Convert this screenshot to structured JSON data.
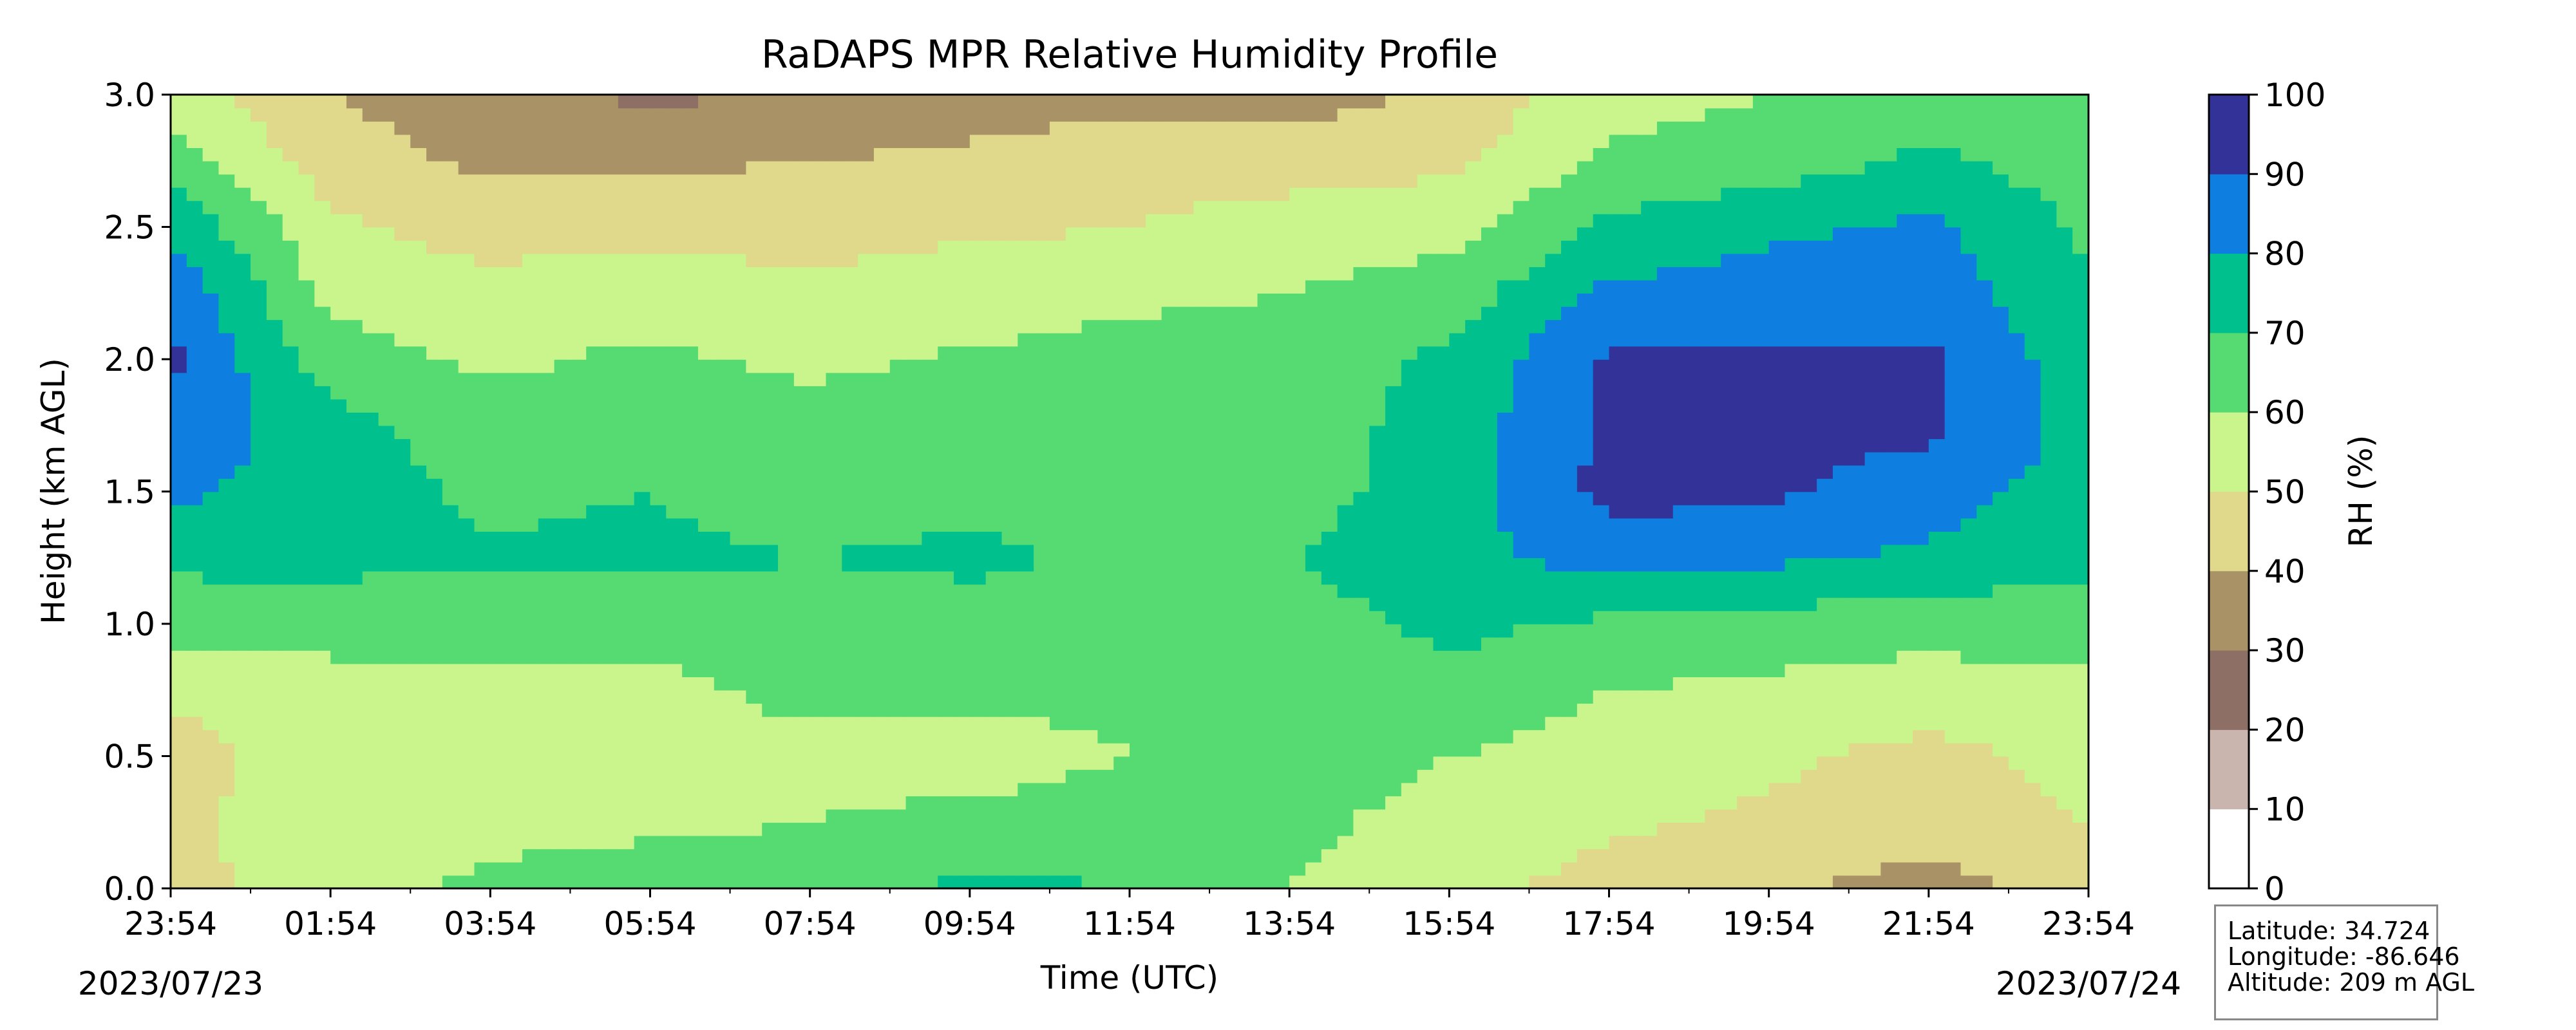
{
  "chart_data": {
    "type": "heatmap",
    "subtype": "filled-contour",
    "title": "RaDAPS MPR Relative Humidity Profile",
    "xlabel": "Time (UTC)",
    "ylabel": "Height (km AGL)",
    "ylim": [
      0.0,
      3.0
    ],
    "yticks": [
      "0.0",
      "0.5",
      "1.0",
      "1.5",
      "2.0",
      "2.5",
      "3.0"
    ],
    "xticks": [
      "23:54",
      "01:54",
      "03:54",
      "05:54",
      "07:54",
      "09:54",
      "11:54",
      "13:54",
      "15:54",
      "17:54",
      "19:54",
      "21:54",
      "23:54"
    ],
    "start_date": "2023/07/23",
    "end_date": "2023/07/24",
    "grid": false,
    "colorbar": {
      "label": "RH (%)",
      "levels": [
        0,
        10,
        20,
        30,
        40,
        50,
        60,
        70,
        80,
        90,
        100
      ],
      "tick_labels": [
        "0",
        "10",
        "20",
        "30",
        "40",
        "50",
        "60",
        "70",
        "80",
        "90",
        "100"
      ],
      "colors": [
        "#ffffff",
        "#c9b4ae",
        "#8e6f66",
        "#a89266",
        "#e0d88a",
        "#caf48c",
        "#56db72",
        "#00c08d",
        "#0e7fe0",
        "#333298"
      ]
    },
    "profiles_note": "RH (%) by height at selected times; heights 0.0-3.0 km every 0.25 km",
    "heights_km": [
      0.0,
      0.25,
      0.5,
      0.75,
      1.0,
      1.25,
      1.5,
      1.75,
      2.0,
      2.25,
      2.5,
      2.75,
      3.0
    ],
    "profiles": [
      {
        "time": "23:54",
        "rh": [
          45,
          48,
          45,
          52,
          65,
          72,
          82,
          88,
          92,
          88,
          78,
          65,
          55
        ]
      },
      {
        "time": "01:54",
        "rh": [
          57,
          56,
          56,
          56,
          64,
          73,
          75,
          73,
          65,
          57,
          52,
          45,
          40
        ]
      },
      {
        "time": "03:54",
        "rh": [
          62,
          57,
          57,
          57,
          64,
          71,
          68,
          65,
          58,
          54,
          45,
          38,
          33
        ]
      },
      {
        "time": "05:54",
        "rh": [
          65,
          58,
          57,
          57,
          64,
          72,
          70,
          66,
          62,
          55,
          48,
          38,
          28
        ]
      },
      {
        "time": "07:54",
        "rh": [
          66,
          60,
          57,
          63,
          66,
          70,
          65,
          64,
          58,
          52,
          46,
          40,
          32
        ]
      },
      {
        "time": "09:54",
        "rh": [
          72,
          63,
          55,
          63,
          66,
          72,
          68,
          65,
          61,
          56,
          48,
          42,
          35
        ]
      },
      {
        "time": "11:54",
        "rh": [
          70,
          65,
          60,
          62,
          66,
          68,
          66,
          65,
          63,
          58,
          50,
          45,
          38
        ]
      },
      {
        "time": "13:54",
        "rh": [
          60,
          62,
          64,
          64,
          66,
          70,
          66,
          65,
          65,
          60,
          55,
          45,
          35
        ]
      },
      {
        "time": "15:54",
        "rh": [
          55,
          57,
          60,
          68,
          72,
          76,
          75,
          74,
          72,
          65,
          56,
          48,
          42
        ]
      },
      {
        "time": "17:54",
        "rh": [
          45,
          52,
          55,
          60,
          68,
          85,
          93,
          92,
          91,
          82,
          72,
          62,
          56
        ]
      },
      {
        "time": "19:54",
        "rh": [
          42,
          48,
          52,
          58,
          66,
          82,
          92,
          93,
          92,
          85,
          78,
          65,
          60
        ]
      },
      {
        "time": "21:54",
        "rh": [
          35,
          45,
          47,
          55,
          64,
          78,
          85,
          92,
          92,
          85,
          82,
          72,
          62
        ]
      },
      {
        "time": "23:54",
        "rh": [
          47,
          50,
          53,
          58,
          65,
          72,
          75,
          76,
          74,
          72,
          68,
          65,
          62
        ]
      }
    ]
  },
  "info": {
    "latitude": "Latitude: 34.724",
    "longitude": "Longitude: -86.646",
    "altitude": "Altitude: 209 m AGL"
  }
}
